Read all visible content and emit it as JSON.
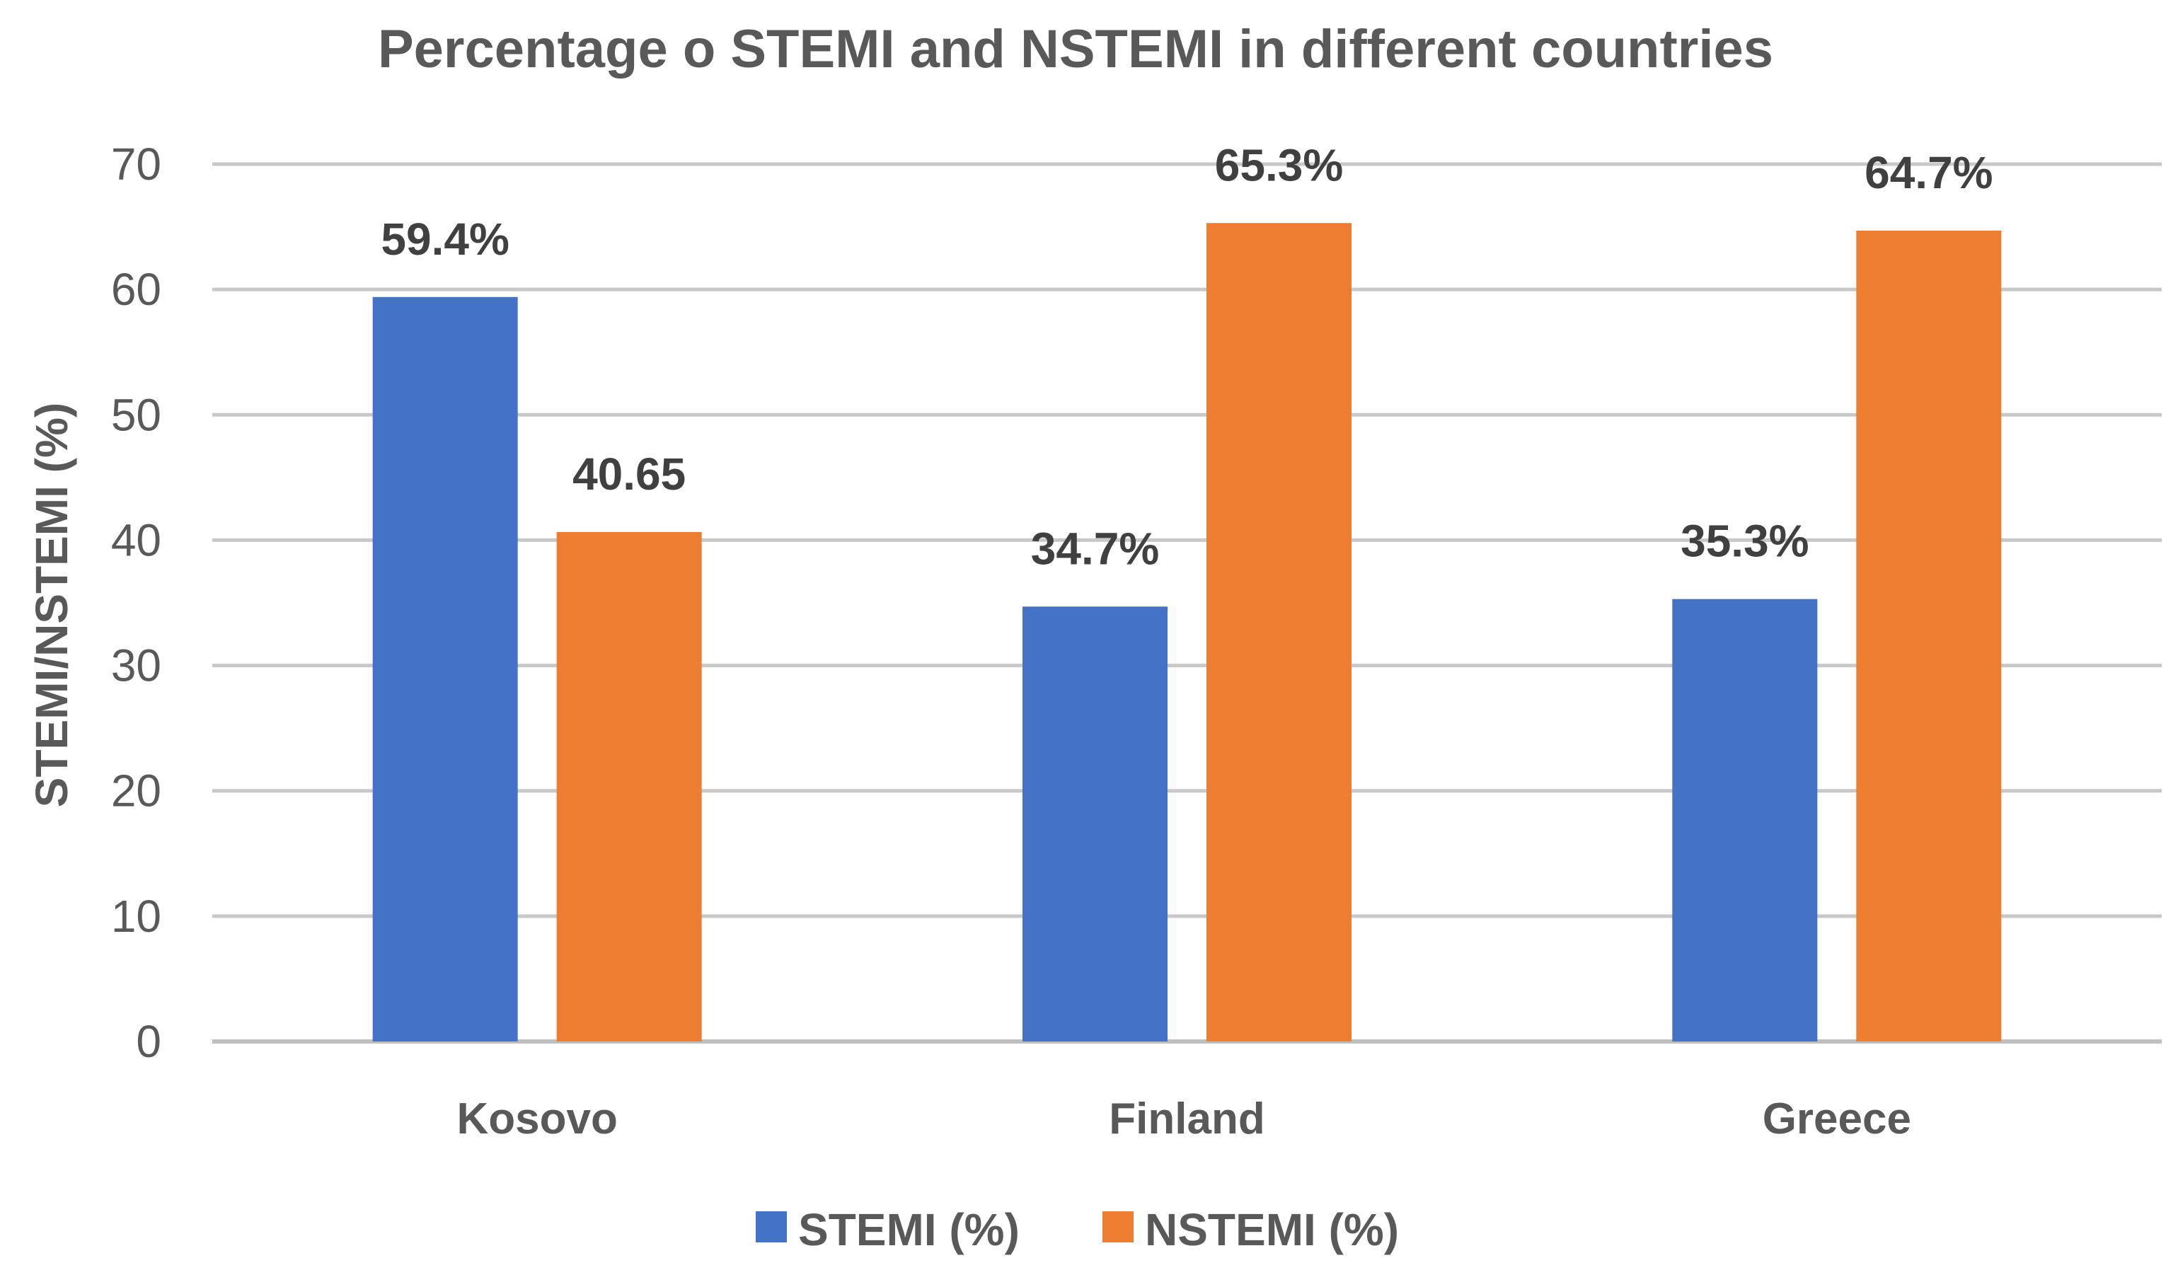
{
  "chart_data": {
    "type": "bar",
    "title": "Percentage o STEMI and NSTEMI in different countries",
    "xlabel": "",
    "ylabel": "STEMI/NSTEMI (%)",
    "ylim": [
      0,
      70
    ],
    "yticks": [
      0,
      10,
      20,
      30,
      40,
      50,
      60,
      70
    ],
    "grid": true,
    "legend_position": "bottom",
    "categories": [
      "Kosovo",
      "Finland",
      "Greece"
    ],
    "series": [
      {
        "name": "STEMI (%)",
        "color": "#4472C4",
        "values": [
          59.4,
          34.7,
          35.3
        ],
        "data_labels": [
          "59.4%",
          "34.7%",
          "35.3%"
        ]
      },
      {
        "name": "NSTEMI (%)",
        "color": "#ED7D31",
        "values": [
          40.65,
          65.3,
          64.7
        ],
        "data_labels": [
          "40.65",
          "65.3%",
          "64.7%"
        ]
      }
    ]
  }
}
